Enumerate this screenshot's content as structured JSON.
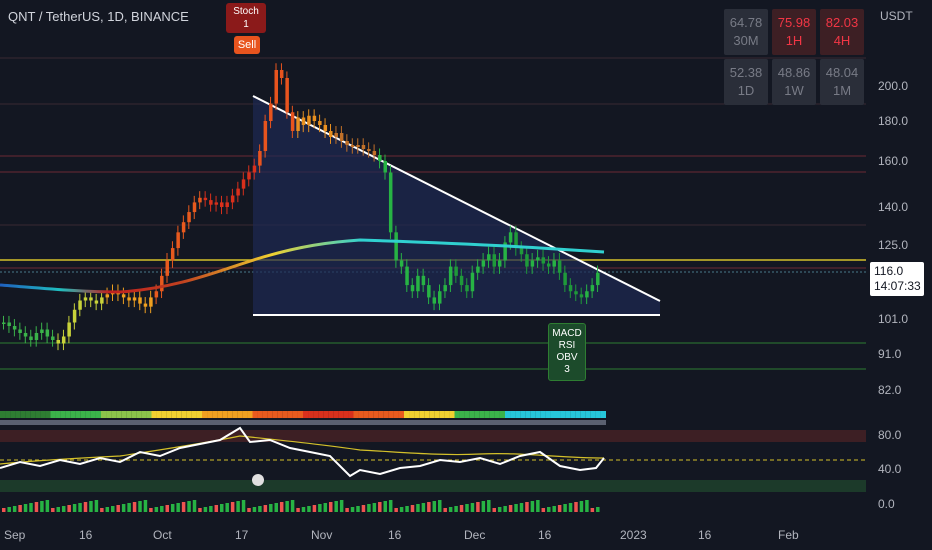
{
  "header": {
    "title": "QNT / TetherUS, 1D, BINANCE",
    "currency": "USDT"
  },
  "panel": [
    {
      "value": "64.78",
      "label": "30M",
      "highlight": false
    },
    {
      "value": "75.98",
      "label": "1H",
      "highlight": true
    },
    {
      "value": "82.03",
      "label": "4H",
      "highlight": true
    },
    {
      "value": "52.38",
      "label": "1D",
      "highlight": false
    },
    {
      "value": "48.86",
      "label": "1W",
      "highlight": false
    },
    {
      "value": "48.04",
      "label": "1M",
      "highlight": false
    }
  ],
  "tags": {
    "stoch_line1": "Stoch",
    "stoch_line2": "1",
    "sell": "Sell",
    "macd": [
      "MACD",
      "RSI",
      "OBV",
      "3"
    ]
  },
  "last_price": {
    "price": "116.0",
    "countdown": "14:07:33"
  },
  "colors": {
    "background": "#131722",
    "up": "#26a69a",
    "down": "#ef5350",
    "accent": "#f23645"
  },
  "chart_data": {
    "type": "candlestick",
    "ylabels": [
      "200.0",
      "180.0",
      "160.0",
      "140.0",
      "125.0",
      "101.0",
      "91.0",
      "82.0"
    ],
    "osc_labels": [
      "80.0",
      "40.0",
      "0.0"
    ],
    "xlabels": [
      "Sep",
      "16",
      "Oct",
      "17",
      "Nov",
      "16",
      "Dec",
      "16",
      "2023",
      "16",
      "Feb"
    ],
    "close": [
      100,
      99,
      98,
      97,
      96,
      95,
      97,
      98,
      96,
      95,
      94,
      96,
      100,
      104,
      107,
      108,
      107,
      106,
      108,
      109,
      110,
      109,
      108,
      107,
      108,
      106,
      105,
      108,
      110,
      115,
      120,
      124,
      130,
      134,
      138,
      142,
      144,
      143,
      141,
      142,
      140,
      142,
      145,
      148,
      152,
      155,
      158,
      165,
      180,
      190,
      210,
      205,
      185,
      175,
      182,
      178,
      183,
      180,
      178,
      175,
      172,
      174,
      170,
      168,
      167,
      168,
      166,
      165,
      163,
      160,
      155,
      130,
      120,
      118,
      112,
      110,
      115,
      112,
      108,
      106,
      110,
      112,
      118,
      115,
      112,
      110,
      116,
      118,
      120,
      122,
      118,
      120,
      126,
      130,
      124,
      122,
      118,
      120,
      121,
      119,
      118,
      120,
      116,
      112,
      110,
      109,
      108,
      110,
      112,
      116
    ]
  }
}
